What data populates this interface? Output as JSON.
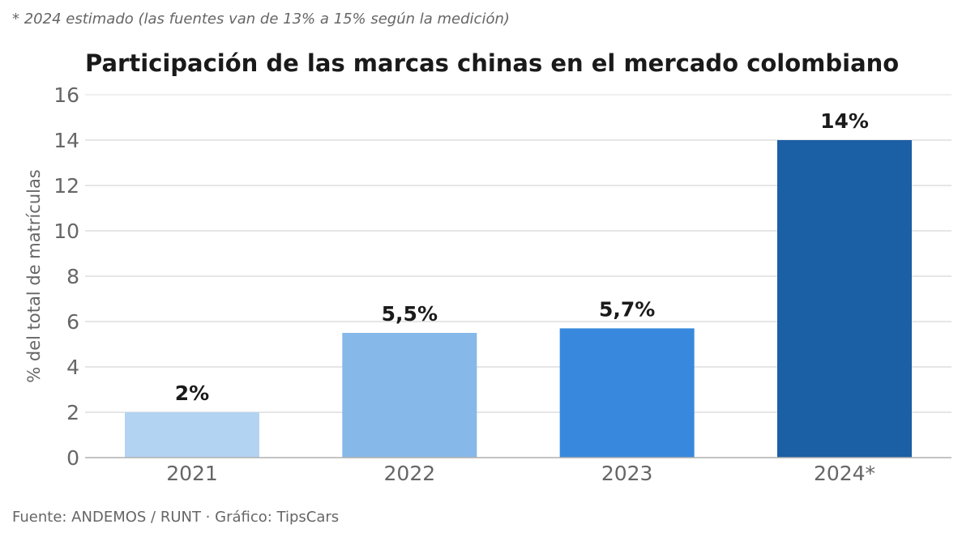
{
  "note": "* 2024 estimado (las fuentes van de 13% a 15% según la medición)",
  "source": "Fuente: ANDEMOS / RUNT · Gráfico: TipsCars",
  "chart_data": {
    "type": "bar",
    "title": "Participación de las marcas chinas en el mercado colombiano",
    "xlabel": "",
    "ylabel": "% del total de matrículas",
    "categories": [
      "2021",
      "2022",
      "2023",
      "2024*"
    ],
    "values": [
      2,
      5.5,
      5.7,
      14
    ],
    "data_labels": [
      "2%",
      "5,5%",
      "5,7%",
      "14%"
    ],
    "colors": [
      "#b3d3f2",
      "#86b8e9",
      "#3889dd",
      "#1b5fa5"
    ],
    "ylim": [
      0,
      16
    ],
    "yticks": [
      0,
      2,
      4,
      6,
      8,
      10,
      12,
      14,
      16
    ],
    "grid": true
  }
}
